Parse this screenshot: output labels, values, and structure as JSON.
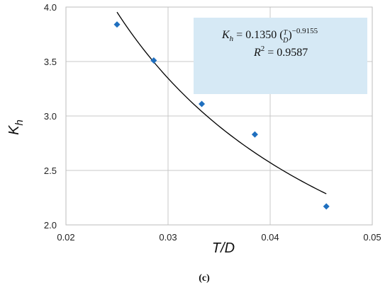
{
  "chart_data": {
    "type": "scatter",
    "title": "",
    "xlabel": "T/D",
    "ylabel": "K_h",
    "xlim": [
      0.02,
      0.05
    ],
    "ylim": [
      2.0,
      4.0
    ],
    "x_ticks": [
      0.02,
      0.03,
      0.04,
      0.05
    ],
    "x_tick_labels": [
      "0.02",
      "0.03",
      "0.04",
      "0.05"
    ],
    "y_ticks": [
      2.0,
      2.5,
      3.0,
      3.5,
      4.0
    ],
    "y_tick_labels": [
      "2.0",
      "2.5",
      "3.0",
      "3.5",
      "4.0"
    ],
    "grid": true,
    "points": [
      {
        "x": 0.025,
        "y": 3.84
      },
      {
        "x": 0.0286,
        "y": 3.51
      },
      {
        "x": 0.0333,
        "y": 3.11
      },
      {
        "x": 0.0385,
        "y": 2.83
      },
      {
        "x": 0.0455,
        "y": 2.17
      }
    ],
    "point_color": "#1f6fbf",
    "fit": {
      "coefficient": 0.135,
      "exponent": -0.9155,
      "x_range": [
        0.025,
        0.0455
      ],
      "color": "#000000"
    },
    "annotation": {
      "equation_prefix": "K",
      "equation_sub": "h",
      "equation_mid": " = 0.1350 (",
      "equation_frac_num": "T",
      "equation_frac_den": "D",
      "equation_close": ")",
      "equation_exp": "−0.9155",
      "r2_base": "R",
      "r2_sup": "2",
      "r2_rest": " = 0.9587",
      "background": "#d6e9f5"
    },
    "caption": "(c)"
  }
}
